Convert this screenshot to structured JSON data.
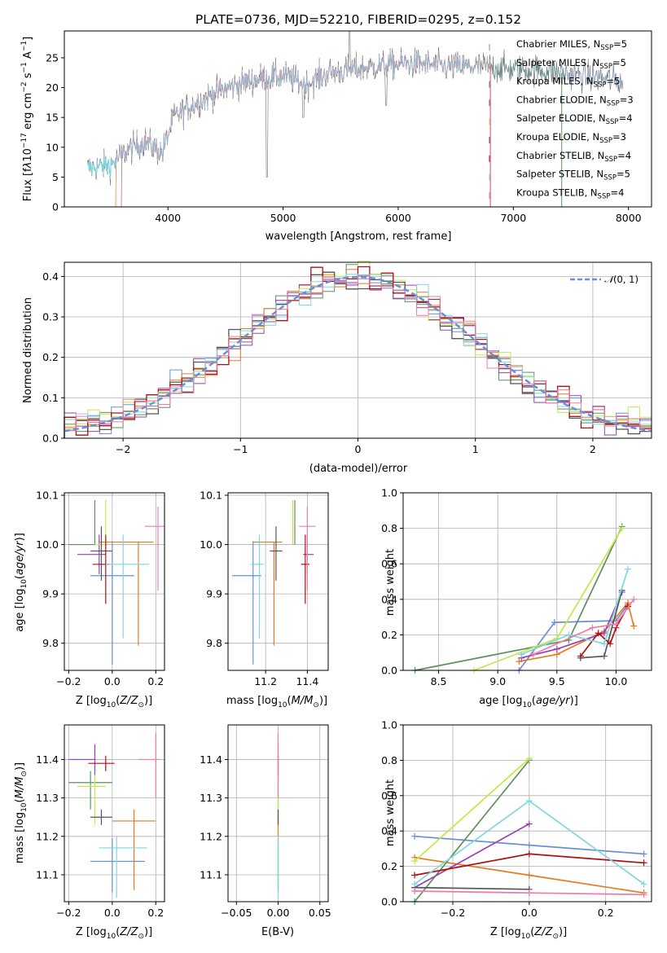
{
  "title": "PLATE=0736, MJD=52210, FIBERID=0295, z=0.152",
  "colors": [
    "#6a8fd8",
    "#e87a1e",
    "#5e8f5e",
    "#9a3fb5",
    "#c6e64a",
    "#555555",
    "#b01010",
    "#7fd6e0",
    "#f07aaa"
  ],
  "chart_data": [
    {
      "id": "spectrum",
      "type": "line",
      "xlabel": "wavelength [Angstrom, rest frame]",
      "ylabel": "Flux [fλ10⁻¹⁷ erg cm⁻² s⁻¹ A⁻¹]",
      "xlim": [
        3100,
        8200
      ],
      "ylim": [
        0,
        29.5
      ],
      "xticks": [
        4000,
        5000,
        6000,
        7000,
        8000
      ],
      "yticks": [
        0,
        5,
        10,
        15,
        20,
        25
      ],
      "legend": [
        "Chabrier MILES, N_SSP=5",
        "Salpeter MILES, N_SSP=5",
        "Kroupa MILES, N_SSP=5",
        "Chabrier ELODIE, N_SSP=3",
        "Salpeter ELODIE, N_SSP=4",
        "Kroupa ELODIE, N_SSP=3",
        "Chabrier STELIB, N_SSP=4",
        "Salpeter STELIB, N_SSP=5",
        "Kroupa STELIB, N_SSP=4"
      ],
      "legend_loc": "lower-right",
      "continuum": [
        [
          3300,
          6.5
        ],
        [
          3500,
          7
        ],
        [
          3650,
          9.5
        ],
        [
          3800,
          11
        ],
        [
          3950,
          9
        ],
        [
          4050,
          15
        ],
        [
          4200,
          17
        ],
        [
          4400,
          19
        ],
        [
          4600,
          20.5
        ],
        [
          4800,
          21.5
        ],
        [
          5000,
          22
        ],
        [
          5200,
          20.5
        ],
        [
          5400,
          22.5
        ],
        [
          5600,
          23
        ],
        [
          5800,
          23.5
        ],
        [
          6000,
          24
        ],
        [
          6200,
          24
        ],
        [
          6400,
          23.5
        ],
        [
          6600,
          23.5
        ],
        [
          6800,
          23.5
        ],
        [
          7000,
          23
        ],
        [
          7200,
          23
        ],
        [
          7400,
          22.5
        ],
        [
          7600,
          22
        ],
        [
          7800,
          21.5
        ],
        [
          7950,
          21
        ]
      ]
    },
    {
      "id": "residual-hist",
      "type": "bar",
      "xlabel": "(data-model)/error",
      "ylabel": "Normed distribution",
      "xlim": [
        -2.5,
        2.5
      ],
      "ylim": [
        0,
        0.435
      ],
      "xticks": [
        -2,
        -1,
        0,
        1,
        2
      ],
      "yticks": [
        0.0,
        0.1,
        0.2,
        0.3,
        0.4
      ],
      "grid": true,
      "bin_width": 0.1,
      "legend": [
        "N(0,1)"
      ],
      "legend_loc": "upper-right"
    },
    {
      "id": "age-vs-Z",
      "type": "scatter",
      "xlabel": "Z [log10(Z/Z⊙)]",
      "ylabel": "age  [log10(age/yr)]",
      "xlim": [
        -0.22,
        0.24
      ],
      "ylim": [
        9.745,
        10.105
      ],
      "xticks": [
        -0.2,
        0.0,
        0.2
      ],
      "yticks": [
        9.8,
        9.9,
        10.0,
        10.1
      ],
      "points": [
        {
          "x": 0.0,
          "y": 9.937,
          "xerr": [
            0.1,
            0.1
          ],
          "yerr": [
            0.18,
            0.07
          ]
        },
        {
          "x": 0.12,
          "y": 10.005,
          "xerr": [
            0.18,
            0.07
          ],
          "yerr": [
            0.21,
            0.0
          ]
        },
        {
          "x": -0.08,
          "y": 10.0,
          "xerr": [
            0.12,
            0.0
          ],
          "yerr": [
            0.0,
            0.09
          ]
        },
        {
          "x": -0.06,
          "y": 9.98,
          "xerr": [
            0.1,
            0.03
          ],
          "yerr": [
            0.04,
            0.04
          ]
        },
        {
          "x": -0.03,
          "y": 10.0,
          "xerr": [
            0.05,
            0.0
          ],
          "yerr": [
            0.0,
            0.09
          ]
        },
        {
          "x": -0.05,
          "y": 9.987,
          "xerr": [
            0.05,
            0.05
          ],
          "yerr": [
            0.06,
            0.05
          ]
        },
        {
          "x": -0.03,
          "y": 9.96,
          "xerr": [
            0.06,
            0.02
          ],
          "yerr": [
            0.08,
            0.06
          ]
        },
        {
          "x": 0.05,
          "y": 9.96,
          "xerr": [
            0.08,
            0.12
          ],
          "yerr": [
            0.15,
            0.06
          ]
        },
        {
          "x": 0.21,
          "y": 10.037,
          "xerr": [
            0.06,
            0.03
          ],
          "yerr": [
            0.13,
            0.04
          ]
        }
      ]
    },
    {
      "id": "age-vs-mass",
      "type": "scatter",
      "xlabel": "mass [log10(M/M⊙)]",
      "ylabel": "",
      "xlim": [
        11.02,
        11.5
      ],
      "ylim": [
        9.745,
        10.105
      ],
      "xticks": [
        11.2,
        11.4
      ],
      "yticks": [
        9.8,
        9.9,
        10.0,
        10.1
      ],
      "points": [
        {
          "x": 11.14,
          "y": 9.937,
          "xerr": [
            0.1,
            0.04
          ],
          "yerr": [
            0.18,
            0.07
          ]
        },
        {
          "x": 11.24,
          "y": 10.005,
          "xerr": [
            0.1,
            0.04
          ],
          "yerr": [
            0.21,
            0.0
          ]
        },
        {
          "x": 11.34,
          "y": 10.0,
          "xerr": [
            0.0,
            0.0
          ],
          "yerr": [
            0.0,
            0.09
          ]
        },
        {
          "x": 11.4,
          "y": 9.98,
          "xerr": [
            0.02,
            0.03
          ],
          "yerr": [
            0.04,
            0.04
          ]
        },
        {
          "x": 11.33,
          "y": 10.0,
          "xerr": [
            0.0,
            0.0
          ],
          "yerr": [
            0.0,
            0.09
          ]
        },
        {
          "x": 11.25,
          "y": 9.987,
          "xerr": [
            0.03,
            0.03
          ],
          "yerr": [
            0.06,
            0.05
          ]
        },
        {
          "x": 11.39,
          "y": 9.96,
          "xerr": [
            0.02,
            0.02
          ],
          "yerr": [
            0.08,
            0.06
          ]
        },
        {
          "x": 11.17,
          "y": 9.96,
          "xerr": [
            0.04,
            0.02
          ],
          "yerr": [
            0.15,
            0.06
          ]
        },
        {
          "x": 11.4,
          "y": 10.037,
          "xerr": [
            0.04,
            0.04
          ],
          "yerr": [
            0.13,
            0.04
          ]
        }
      ]
    },
    {
      "id": "mass-weight-vs-age",
      "type": "line",
      "xlabel": "age  [log10(age/yr)]",
      "ylabel": "mass weight",
      "xlim": [
        8.2,
        10.3
      ],
      "ylim": [
        0.0,
        1.0
      ],
      "xticks": [
        8.5,
        9.0,
        9.5,
        10.0
      ],
      "yticks": [
        0.0,
        0.2,
        0.4,
        0.6,
        0.8,
        1.0
      ],
      "grid": true,
      "series": [
        {
          "x": [
            9.18,
            9.48,
            10.0,
            10.1
          ],
          "y": [
            0.0,
            0.27,
            0.28,
            0.37
          ]
        },
        {
          "x": [
            9.18,
            9.5,
            9.9,
            10.1,
            10.15
          ],
          "y": [
            0.05,
            0.09,
            0.22,
            0.38,
            0.25
          ]
        },
        {
          "x": [
            8.3,
            9.6,
            10.05
          ],
          "y": [
            0.0,
            0.17,
            0.81
          ]
        },
        {
          "x": [
            9.2,
            9.5,
            9.9,
            10.05
          ],
          "y": [
            0.07,
            0.12,
            0.21,
            0.44
          ]
        },
        {
          "x": [
            8.8,
            9.5,
            10.05
          ],
          "y": [
            0.0,
            0.18,
            0.8
          ]
        },
        {
          "x": [
            9.7,
            9.9,
            10.05
          ],
          "y": [
            0.07,
            0.08,
            0.45
          ]
        },
        {
          "x": [
            9.7,
            9.85,
            9.95,
            10.0,
            10.1
          ],
          "y": [
            0.08,
            0.21,
            0.15,
            0.24,
            0.36
          ]
        },
        {
          "x": [
            9.2,
            9.6,
            9.9,
            10.1
          ],
          "y": [
            0.09,
            0.2,
            0.15,
            0.57
          ]
        },
        {
          "x": [
            9.3,
            9.8,
            10.0,
            10.15
          ],
          "y": [
            0.09,
            0.24,
            0.26,
            0.4
          ]
        }
      ]
    },
    {
      "id": "mass-vs-Z",
      "type": "scatter",
      "xlabel": "Z [log10(Z/Z⊙)]",
      "ylabel": "mass [log10(M/M⊙)]",
      "xlim": [
        -0.22,
        0.24
      ],
      "ylim": [
        11.03,
        11.49
      ],
      "xticks": [
        -0.2,
        0.0,
        0.2
      ],
      "yticks": [
        11.1,
        11.2,
        11.3,
        11.4
      ],
      "points": [
        {
          "x": 0.0,
          "y": 11.135,
          "xerr": [
            0.1,
            0.15
          ],
          "yerr": [
            0.08,
            0.06
          ]
        },
        {
          "x": 0.1,
          "y": 11.24,
          "xerr": [
            0.1,
            0.1
          ],
          "yerr": [
            0.18,
            0.03
          ]
        },
        {
          "x": -0.1,
          "y": 11.34,
          "xerr": [
            0.1,
            0.1
          ],
          "yerr": [
            0.07,
            0.03
          ]
        },
        {
          "x": -0.08,
          "y": 11.4,
          "xerr": [
            0.12,
            0.0
          ],
          "yerr": [
            0.04,
            0.04
          ]
        },
        {
          "x": -0.08,
          "y": 11.33,
          "xerr": [
            0.08,
            0.05
          ],
          "yerr": [
            0.1,
            0.03
          ]
        },
        {
          "x": -0.05,
          "y": 11.25,
          "xerr": [
            0.05,
            0.05
          ],
          "yerr": [
            0.02,
            0.02
          ]
        },
        {
          "x": -0.03,
          "y": 11.39,
          "xerr": [
            0.08,
            0.04
          ],
          "yerr": [
            0.02,
            0.02
          ]
        },
        {
          "x": 0.02,
          "y": 11.17,
          "xerr": [
            0.08,
            0.14
          ],
          "yerr": [
            0.13,
            0.03
          ]
        },
        {
          "x": 0.2,
          "y": 11.4,
          "xerr": [
            0.08,
            0.02
          ],
          "yerr": [
            0.1,
            0.07
          ]
        }
      ]
    },
    {
      "id": "mass-vs-EBV",
      "type": "scatter",
      "xlabel": "E(B-V)",
      "ylabel": "",
      "xlim": [
        -0.06,
        0.06
      ],
      "ylim": [
        11.03,
        11.49
      ],
      "xticks": [
        -0.05,
        0.0,
        0.05
      ],
      "yticks": [
        11.1,
        11.2,
        11.3,
        11.4
      ],
      "points": [
        {
          "x": 0.0,
          "y": 11.135,
          "xerr": [
            0,
            0
          ],
          "yerr": [
            0.08,
            0.06
          ]
        },
        {
          "x": 0.0,
          "y": 11.24,
          "xerr": [
            0,
            0
          ],
          "yerr": [
            0.18,
            0.03
          ]
        },
        {
          "x": 0.0,
          "y": 11.34,
          "xerr": [
            0,
            0
          ],
          "yerr": [
            0.07,
            0.03
          ]
        },
        {
          "x": 0.0,
          "y": 11.4,
          "xerr": [
            0,
            0
          ],
          "yerr": [
            0.04,
            0.04
          ]
        },
        {
          "x": 0.0,
          "y": 11.33,
          "xerr": [
            0,
            0
          ],
          "yerr": [
            0.1,
            0.03
          ]
        },
        {
          "x": 0.0,
          "y": 11.25,
          "xerr": [
            0,
            0
          ],
          "yerr": [
            0.02,
            0.02
          ]
        },
        {
          "x": 0.0,
          "y": 11.39,
          "xerr": [
            0,
            0
          ],
          "yerr": [
            0.02,
            0.02
          ]
        },
        {
          "x": 0.0,
          "y": 11.17,
          "xerr": [
            0,
            0
          ],
          "yerr": [
            0.13,
            0.03
          ]
        },
        {
          "x": 0.0,
          "y": 11.4,
          "xerr": [
            0,
            0
          ],
          "yerr": [
            0.1,
            0.07
          ]
        }
      ]
    },
    {
      "id": "mass-weight-vs-Z",
      "type": "line",
      "xlabel": "Z [log10(Z/Z⊙)]",
      "ylabel": "mass weight",
      "xlim": [
        -0.33,
        0.32
      ],
      "ylim": [
        0.0,
        1.0
      ],
      "xticks": [
        -0.2,
        0.0,
        0.2
      ],
      "yticks": [
        0.0,
        0.2,
        0.4,
        0.6,
        0.8,
        1.0
      ],
      "grid": true,
      "series": [
        {
          "x": [
            -0.3,
            0.0,
            0.3
          ],
          "y": [
            0.37,
            0.32,
            0.27
          ]
        },
        {
          "x": [
            -0.3,
            0.0,
            0.3
          ],
          "y": [
            0.25,
            0.15,
            0.05
          ]
        },
        {
          "x": [
            -0.3,
            0.0
          ],
          "y": [
            0.0,
            0.8
          ]
        },
        {
          "x": [
            -0.3,
            0.0
          ],
          "y": [
            0.08,
            0.44
          ]
        },
        {
          "x": [
            -0.3,
            0.0
          ],
          "y": [
            0.23,
            0.81
          ]
        },
        {
          "x": [
            -0.3,
            0.0
          ],
          "y": [
            0.08,
            0.07
          ]
        },
        {
          "x": [
            -0.3,
            0.0,
            0.3
          ],
          "y": [
            0.15,
            0.27,
            0.22
          ]
        },
        {
          "x": [
            -0.3,
            0.0,
            0.3
          ],
          "y": [
            0.1,
            0.57,
            0.1
          ]
        },
        {
          "x": [
            -0.3,
            0.0,
            0.3
          ],
          "y": [
            0.06,
            0.05,
            0.04
          ]
        }
      ]
    }
  ]
}
